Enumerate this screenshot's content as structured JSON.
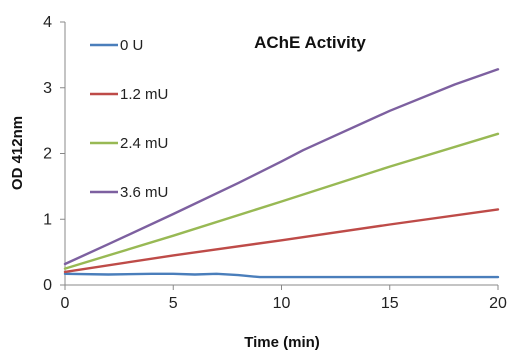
{
  "chart_data": {
    "type": "line",
    "title": "AChE Activity",
    "xlabel": "Time (min)",
    "ylabel": "OD 412nm",
    "xlim": [
      0,
      20
    ],
    "ylim": [
      0,
      4
    ],
    "x_ticks": [
      "0",
      "5",
      "10",
      "15",
      "20"
    ],
    "y_ticks": [
      "0",
      "1",
      "2",
      "3",
      "4"
    ],
    "grid": false,
    "legend_position": "top-left",
    "series": [
      {
        "name": "0 U",
        "color": "#4a7ebb",
        "points": [
          [
            0,
            0.17
          ],
          [
            2,
            0.16
          ],
          [
            4,
            0.17
          ],
          [
            5,
            0.17
          ],
          [
            6,
            0.16
          ],
          [
            7,
            0.17
          ],
          [
            8,
            0.15
          ],
          [
            9,
            0.12
          ],
          [
            12,
            0.12
          ],
          [
            16,
            0.12
          ],
          [
            20,
            0.12
          ]
        ]
      },
      {
        "name": "1.2 mU",
        "color": "#be4b48",
        "points": [
          [
            0,
            0.2
          ],
          [
            5,
            0.45
          ],
          [
            10,
            0.68
          ],
          [
            15,
            0.92
          ],
          [
            20,
            1.15
          ]
        ]
      },
      {
        "name": "2.4 mU",
        "color": "#98b954",
        "points": [
          [
            0,
            0.25
          ],
          [
            5,
            0.75
          ],
          [
            10,
            1.27
          ],
          [
            15,
            1.8
          ],
          [
            20,
            2.3
          ]
        ]
      },
      {
        "name": "3.6 mU",
        "color": "#7d60a0",
        "points": [
          [
            0,
            0.32
          ],
          [
            2,
            0.62
          ],
          [
            5,
            1.08
          ],
          [
            8,
            1.55
          ],
          [
            10,
            1.88
          ],
          [
            11,
            2.05
          ],
          [
            12,
            2.2
          ],
          [
            15,
            2.65
          ],
          [
            18,
            3.05
          ],
          [
            20,
            3.28
          ]
        ]
      }
    ]
  }
}
